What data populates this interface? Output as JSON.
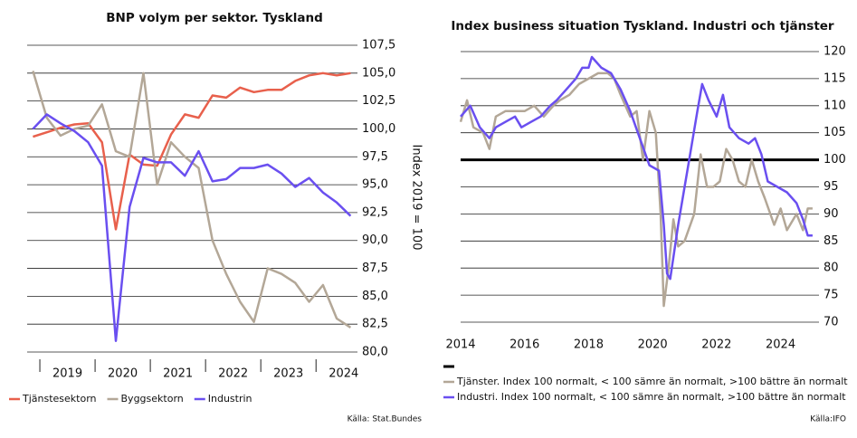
{
  "chart_data": [
    {
      "type": "line",
      "title": "BNP volym per sektor. Tyskland",
      "y_axis_label": "Index 2019 = 100",
      "source": "Källa: Stat.Bundes",
      "xlim": [
        2018.77,
        2024.75
      ],
      "xticks": [
        {
          "value": 2019.5,
          "label": "2019"
        },
        {
          "value": 2020.5,
          "label": "2020"
        },
        {
          "value": 2021.5,
          "label": "2021"
        },
        {
          "value": 2022.5,
          "label": "2022"
        },
        {
          "value": 2023.5,
          "label": "2023"
        },
        {
          "value": 2024.5,
          "label": "2024"
        }
      ],
      "ylim": [
        80,
        107.5
      ],
      "yticks": [
        {
          "value": 80,
          "label": "80,0"
        },
        {
          "value": 82.5,
          "label": "82,5"
        },
        {
          "value": 85,
          "label": "85,0"
        },
        {
          "value": 87.5,
          "label": "87,5"
        },
        {
          "value": 90,
          "label": "90,0"
        },
        {
          "value": 92.5,
          "label": "92,5"
        },
        {
          "value": 95,
          "label": "95,0"
        },
        {
          "value": 97.5,
          "label": "97,5"
        },
        {
          "value": 100,
          "label": "100,0"
        },
        {
          "value": 102.5,
          "label": "102,5"
        },
        {
          "value": 105,
          "label": "105,0"
        },
        {
          "value": 107.5,
          "label": "107,5"
        }
      ],
      "grid": true,
      "x": [
        2018.875,
        2019.125,
        2019.375,
        2019.625,
        2019.875,
        2020.125,
        2020.375,
        2020.625,
        2020.875,
        2021.125,
        2021.375,
        2021.625,
        2021.875,
        2022.125,
        2022.375,
        2022.625,
        2022.875,
        2023.125,
        2023.375,
        2023.625,
        2023.875,
        2024.125,
        2024.375,
        2024.625
      ],
      "series": [
        {
          "name": "Tjänstesektorn",
          "color": "#e8604c",
          "values": [
            99.3,
            99.7,
            100.1,
            100.4,
            100.5,
            98.8,
            91.0,
            97.7,
            96.8,
            96.7,
            99.5,
            101.3,
            101.0,
            103.0,
            102.8,
            103.7,
            103.3,
            103.5,
            103.5,
            104.3,
            104.8,
            105.0,
            104.8,
            105.0
          ]
        },
        {
          "name": "Byggsektorn",
          "color": "#b3a797",
          "values": [
            105.2,
            101.0,
            99.4,
            100.0,
            100.3,
            102.2,
            98.0,
            97.5,
            105.0,
            95.0,
            98.8,
            97.5,
            96.5,
            90.0,
            87.0,
            84.5,
            82.7,
            87.5,
            87.0,
            86.2,
            84.5,
            86.0,
            83.0,
            82.2
          ]
        },
        {
          "name": "Industrin",
          "color": "#6a4ff0",
          "values": [
            100.0,
            101.3,
            100.5,
            99.8,
            98.8,
            96.7,
            81.0,
            93.0,
            97.4,
            97.0,
            97.0,
            95.8,
            98.0,
            95.3,
            95.5,
            96.5,
            96.5,
            96.8,
            96.0,
            94.8,
            95.6,
            94.3,
            93.4,
            92.2
          ]
        }
      ]
    },
    {
      "type": "line",
      "title": "Index business situation Tyskland. Industri och tjänster",
      "source": "Källa:IFO",
      "xlim": [
        2014,
        2025.2
      ],
      "xticks": [
        2014,
        2016,
        2018,
        2020,
        2022,
        2024
      ],
      "ylim": [
        70,
        120
      ],
      "yticks": [
        70,
        75,
        80,
        85,
        90,
        95,
        100,
        105,
        110,
        115,
        120
      ],
      "grid": true,
      "reference_line": 100,
      "series": [
        {
          "name": "Tjänster. Index 100 normalt, < 100 sämre än normalt, >100 bättre än normalt",
          "color": "#b3a797",
          "x": [
            2014.0,
            2014.2,
            2014.4,
            2014.7,
            2014.9,
            2015.1,
            2015.4,
            2015.7,
            2016.0,
            2016.3,
            2016.6,
            2016.9,
            2017.1,
            2017.4,
            2017.7,
            2018.0,
            2018.3,
            2018.6,
            2018.8,
            2019.0,
            2019.3,
            2019.5,
            2019.7,
            2019.9,
            2020.1,
            2020.25,
            2020.35,
            2020.5,
            2020.65,
            2020.8,
            2021.0,
            2021.3,
            2021.5,
            2021.7,
            2021.9,
            2022.1,
            2022.3,
            2022.5,
            2022.7,
            2022.9,
            2023.1,
            2023.3,
            2023.5,
            2023.8,
            2024.0,
            2024.2,
            2024.5,
            2024.7,
            2024.85,
            2025.0
          ],
          "values": [
            107,
            111,
            106,
            105,
            102,
            108,
            109,
            109,
            109,
            110,
            108,
            110,
            111,
            112,
            114,
            115,
            116,
            116,
            115,
            112,
            108,
            109,
            100,
            109,
            105,
            90,
            73,
            80,
            89,
            84,
            85,
            90,
            101,
            95,
            95,
            96,
            102,
            100,
            96,
            95,
            100,
            96,
            93,
            88,
            91,
            87,
            90,
            87,
            91,
            91
          ]
        },
        {
          "name": "Industri. Index 100 normalt, < 100 sämre än normalt, >100 bättre än normalt",
          "color": "#6a4ff0",
          "x": [
            2014.0,
            2014.3,
            2014.6,
            2014.9,
            2015.1,
            2015.4,
            2015.7,
            2015.9,
            2016.2,
            2016.5,
            2016.8,
            2017.0,
            2017.3,
            2017.6,
            2017.8,
            2018.0,
            2018.1,
            2018.4,
            2018.7,
            2019.0,
            2019.3,
            2019.6,
            2019.9,
            2020.2,
            2020.35,
            2020.45,
            2020.55,
            2020.8,
            2021.0,
            2021.2,
            2021.4,
            2021.55,
            2021.75,
            2022.0,
            2022.2,
            2022.4,
            2022.7,
            2023.0,
            2023.2,
            2023.4,
            2023.6,
            2023.9,
            2024.2,
            2024.5,
            2024.7,
            2024.85,
            2025.0
          ],
          "values": [
            108,
            110,
            106,
            104,
            106,
            107,
            108,
            106,
            107,
            108,
            110,
            111,
            113,
            115,
            117,
            117,
            119,
            117,
            116,
            113,
            109,
            104,
            99,
            98,
            88,
            79,
            78,
            88,
            95,
            102,
            109,
            114,
            111,
            108,
            112,
            106,
            104,
            103,
            104,
            101,
            96,
            95,
            94,
            92,
            89,
            86,
            86
          ]
        }
      ]
    }
  ]
}
